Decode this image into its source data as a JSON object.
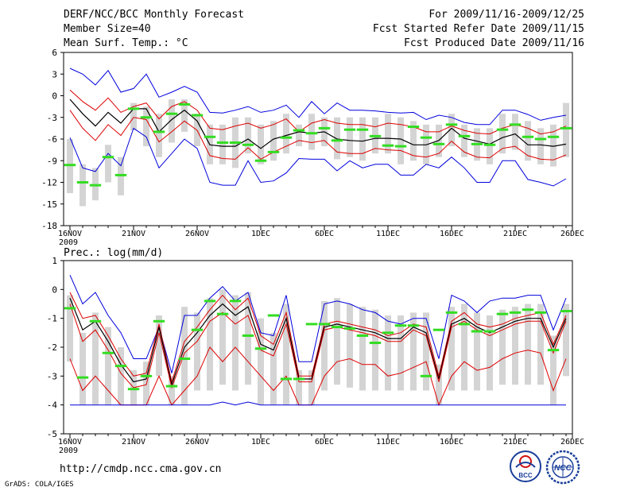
{
  "header": {
    "title": "DERF/NCC/BCC Monthly Forecast",
    "member_size": "Member Size=40",
    "variable": "Mean Surf. Temp.: °C",
    "period": "For 2009/11/16-2009/12/25",
    "started": "Fcst Started Refer Date 2009/11/15",
    "produced": "Fcst Produced Date 2009/11/16"
  },
  "footer": {
    "url": "http://cmdp.ncc.cma.gov.cn",
    "grads": "GrADS: COLA/IGES",
    "logo_bcc": "BCC",
    "logo_ncc": "NCC"
  },
  "colors": {
    "box": "#d4d4d4",
    "median": "#33dd22",
    "mean": "#000000",
    "std": "#dd0000",
    "extreme": "#0000dd"
  },
  "chart_data": [
    {
      "type": "line",
      "title": "Mean Surf. Temp.: °C",
      "xlabel": "",
      "ylabel": "",
      "x_days": 40,
      "x_tick_labels": [
        "16NOV",
        "21NOV",
        "26NOV",
        "1DEC",
        "6DEC",
        "11DEC",
        "16DEC",
        "21DEC",
        "26DEC"
      ],
      "x_year_label": "2009",
      "ylim": [
        -18,
        6
      ],
      "yticks": [
        -18,
        -15,
        -12,
        -9,
        -6,
        -3,
        0,
        3,
        6
      ],
      "series": [
        {
          "name": "max",
          "color": "#0000dd",
          "values": [
            3.8,
            3.0,
            1.5,
            3.5,
            0.5,
            1.0,
            3.0,
            -0.2,
            0.5,
            1.3,
            0.5,
            -2.3,
            -2.4,
            -2.0,
            -1.5,
            -2.3,
            -2.0,
            -1.3,
            -3.0,
            -0.8,
            -2.5,
            -1.0,
            -2.0,
            -2.0,
            -2.1,
            -2.3,
            -2.4,
            -2.3,
            -3.3,
            -2.7,
            -3.0,
            -3.7,
            -4.0,
            -4.0,
            -2.0,
            -2.0,
            -2.6,
            -3.4,
            -3.0,
            -2.7
          ]
        },
        {
          "name": "mean+1sd",
          "color": "#dd0000",
          "values": [
            0.8,
            -0.8,
            -2.0,
            -0.3,
            -2.3,
            -1.5,
            -1.0,
            -3.2,
            -1.5,
            -0.8,
            -2.0,
            -4.5,
            -4.7,
            -4.2,
            -3.8,
            -4.5,
            -4.0,
            -3.2,
            -5.0,
            -3.8,
            -3.3,
            -3.8,
            -4.0,
            -4.0,
            -4.3,
            -3.8,
            -4.0,
            -4.3,
            -5.0,
            -5.0,
            -4.2,
            -4.8,
            -5.2,
            -5.3,
            -4.5,
            -4.0,
            -4.5,
            -5.3,
            -5.0,
            -4.2
          ]
        },
        {
          "name": "mean",
          "color": "#000000",
          "values": [
            -0.5,
            -2.5,
            -4.2,
            -2.3,
            -3.8,
            -1.8,
            -1.8,
            -5.0,
            -3.3,
            -2.0,
            -3.5,
            -6.8,
            -7.0,
            -7.0,
            -6.0,
            -7.3,
            -6.0,
            -5.5,
            -5.0,
            -5.2,
            -5.0,
            -6.0,
            -6.2,
            -6.3,
            -5.9,
            -5.9,
            -6.0,
            -6.8,
            -6.8,
            -6.2,
            -4.5,
            -5.9,
            -6.3,
            -6.7,
            -5.8,
            -5.3,
            -6.8,
            -6.8,
            -7.0,
            -6.7
          ]
        },
        {
          "name": "mean-1sd",
          "color": "#dd0000",
          "values": [
            -2.0,
            -4.5,
            -6.2,
            -4.0,
            -5.5,
            -3.0,
            -3.3,
            -6.4,
            -5.0,
            -3.5,
            -4.8,
            -8.3,
            -8.7,
            -8.8,
            -7.2,
            -8.8,
            -7.8,
            -7.0,
            -6.2,
            -6.5,
            -6.2,
            -7.8,
            -8.0,
            -8.0,
            -7.3,
            -7.5,
            -7.6,
            -8.3,
            -8.5,
            -8.0,
            -6.3,
            -7.8,
            -8.5,
            -8.6,
            -7.3,
            -7.0,
            -8.3,
            -8.8,
            -8.9,
            -8.2
          ]
        },
        {
          "name": "min",
          "color": "#0000dd",
          "values": [
            -5.8,
            -10.0,
            -10.5,
            -8.0,
            -9.7,
            -4.5,
            -5.7,
            -10.0,
            -8.0,
            -6.0,
            -7.3,
            -12.0,
            -12.4,
            -12.4,
            -9.0,
            -12.0,
            -11.8,
            -10.7,
            -8.7,
            -8.8,
            -8.8,
            -10.4,
            -9.0,
            -10.0,
            -9.5,
            -9.5,
            -11.0,
            -11.0,
            -9.5,
            -10.0,
            -8.5,
            -10.0,
            -12.0,
            -12.0,
            -9.0,
            -9.0,
            -11.6,
            -12.0,
            -12.5,
            -11.5
          ]
        }
      ],
      "boxes_low": [
        -13.5,
        -15.3,
        -14.5,
        -12.0,
        -13.8,
        -4.8,
        -7.0,
        -8.5,
        -6.5,
        -5.0,
        -7.0,
        -9.5,
        -9.5,
        -10.0,
        -8.0,
        -9.5,
        -9.0,
        -8.0,
        -7.0,
        -7.5,
        -7.0,
        -8.8,
        -8.5,
        -9.0,
        -8.0,
        -8.0,
        -9.5,
        -9.0,
        -9.5,
        -8.5,
        -7.0,
        -8.5,
        -9.0,
        -9.5,
        -8.0,
        -7.5,
        -9.0,
        -9.5,
        -9.8,
        -8.5
      ],
      "boxes_high": [
        -6.0,
        -9.5,
        -10.0,
        -6.8,
        -8.5,
        -1.0,
        -1.5,
        -2.5,
        -0.5,
        -0.5,
        -2.5,
        -4.0,
        -4.0,
        -3.0,
        -3.0,
        -4.0,
        -3.5,
        -2.5,
        -4.0,
        -2.5,
        -3.0,
        -3.0,
        -3.0,
        -3.0,
        -3.0,
        -2.5,
        -3.0,
        -3.5,
        -4.0,
        -4.0,
        -2.5,
        -4.0,
        -4.5,
        -4.5,
        -2.5,
        -2.5,
        -3.5,
        -4.5,
        -4.0,
        -1.0
      ],
      "medians": [
        -9.6,
        -12.0,
        -12.4,
        -8.5,
        -11.0,
        -1.8,
        -3.0,
        -5.0,
        -2.5,
        -1.2,
        -2.7,
        -5.7,
        -6.5,
        -6.5,
        -6.8,
        -9.0,
        -7.8,
        -5.8,
        -4.8,
        -5.2,
        -4.5,
        -6.2,
        -4.7,
        -4.7,
        -5.6,
        -6.9,
        -7.0,
        -4.3,
        -5.8,
        -6.7,
        -4.0,
        -5.6,
        -6.7,
        -6.8,
        -4.7,
        -4.0,
        -5.7,
        -6.0,
        -5.7,
        -4.5
      ]
    },
    {
      "type": "line",
      "title": "Prec.: log(mm/d)",
      "xlabel": "",
      "ylabel": "",
      "x_days": 40,
      "x_tick_labels": [
        "16NOV",
        "21NOV",
        "26NOV",
        "1DEC",
        "6DEC",
        "11DEC",
        "16DEC",
        "21DEC",
        "26DEC"
      ],
      "x_year_label": "2009",
      "ylim": [
        -5,
        1
      ],
      "yticks": [
        -5,
        -4,
        -3,
        -2,
        -1,
        0,
        1
      ],
      "series": [
        {
          "name": "max",
          "color": "#0000dd",
          "values": [
            0.5,
            -0.5,
            -0.1,
            -0.9,
            -1.5,
            -2.4,
            -2.4,
            -1.3,
            -2.9,
            -0.9,
            -0.9,
            -0.3,
            0.1,
            -0.4,
            -0.1,
            -1.5,
            -1.6,
            -0.2,
            -2.5,
            -2.5,
            -0.5,
            -0.4,
            -0.5,
            -0.7,
            -0.8,
            -1.1,
            -1.2,
            -1.0,
            -1.0,
            -2.4,
            -0.2,
            -0.4,
            -0.8,
            -0.4,
            -0.3,
            -0.3,
            -0.2,
            -0.2,
            -1.4,
            -0.3
          ]
        },
        {
          "name": "mean+1sd",
          "color": "#dd0000",
          "values": [
            -0.1,
            -1.0,
            -0.9,
            -1.6,
            -2.4,
            -3.0,
            -2.9,
            -1.2,
            -3.2,
            -1.8,
            -1.3,
            -0.7,
            -0.2,
            -0.7,
            -0.3,
            -1.6,
            -1.9,
            -0.8,
            -3.0,
            -3.0,
            -1.2,
            -1.1,
            -1.2,
            -1.3,
            -1.4,
            -1.6,
            -1.5,
            -1.2,
            -1.3,
            -3.0,
            -1.1,
            -0.8,
            -1.2,
            -1.3,
            -1.2,
            -1.0,
            -0.9,
            -0.8,
            -1.9,
            -0.9
          ]
        },
        {
          "name": "mean",
          "color": "#000000",
          "values": [
            -0.3,
            -1.4,
            -1.1,
            -1.8,
            -2.6,
            -3.2,
            -3.1,
            -1.3,
            -3.3,
            -2.0,
            -1.5,
            -0.9,
            -0.5,
            -0.9,
            -0.6,
            -1.9,
            -2.1,
            -1.0,
            -3.1,
            -3.1,
            -1.3,
            -1.2,
            -1.3,
            -1.4,
            -1.5,
            -1.7,
            -1.7,
            -1.3,
            -1.5,
            -3.1,
            -1.2,
            -1.0,
            -1.3,
            -1.5,
            -1.3,
            -1.1,
            -1.0,
            -1.0,
            -2.0,
            -1.0
          ]
        },
        {
          "name": "mean-1sd",
          "color": "#dd0000",
          "values": [
            -0.5,
            -1.8,
            -1.4,
            -2.1,
            -2.9,
            -3.4,
            -3.3,
            -1.5,
            -3.4,
            -2.2,
            -1.8,
            -1.1,
            -0.8,
            -1.2,
            -0.9,
            -2.1,
            -2.3,
            -1.2,
            -3.2,
            -3.2,
            -1.4,
            -1.3,
            -1.4,
            -1.5,
            -1.6,
            -1.8,
            -1.8,
            -1.4,
            -1.6,
            -3.2,
            -1.3,
            -1.1,
            -1.4,
            -1.6,
            -1.4,
            -1.2,
            -1.1,
            -1.1,
            -2.2,
            -1.1
          ]
        },
        {
          "name": "low",
          "color": "#dd0000",
          "values": [
            -2.4,
            -3.5,
            -3.0,
            -3.5,
            -4.0,
            -4.0,
            -4.0,
            -3.0,
            -4.0,
            -3.5,
            -3.0,
            -2.0,
            -2.5,
            -2.0,
            -2.5,
            -3.0,
            -3.5,
            -3.0,
            -4.0,
            -4.0,
            -3.0,
            -2.5,
            -2.4,
            -2.6,
            -2.6,
            -3.0,
            -2.9,
            -2.7,
            -2.5,
            -4.0,
            -3.0,
            -2.5,
            -2.8,
            -2.7,
            -2.4,
            -2.2,
            -2.1,
            -2.2,
            -3.5,
            -2.4
          ]
        },
        {
          "name": "min",
          "color": "#0000dd",
          "values": [
            -4.0,
            -4.0,
            -4.0,
            -4.0,
            -4.0,
            -4.0,
            -4.0,
            -4.0,
            -4.0,
            -4.0,
            -4.0,
            -4.0,
            -3.9,
            -4.0,
            -3.9,
            -4.0,
            -4.0,
            -4.0,
            -4.0,
            -4.0,
            -4.0,
            -4.0,
            -4.0,
            -4.0,
            -4.0,
            -4.0,
            -4.0,
            -4.0,
            -4.0,
            -4.0,
            -4.0,
            -4.0,
            -4.0,
            -4.0,
            -4.0,
            -4.0,
            -4.0,
            -4.0,
            -4.0,
            -4.0
          ]
        }
      ],
      "boxes_low": [
        -2.5,
        -4.0,
        -4.0,
        -4.0,
        -4.0,
        -4.0,
        -4.0,
        -3.0,
        -4.0,
        -4.0,
        -3.5,
        -3.5,
        -3.3,
        -3.5,
        -3.3,
        -4.0,
        -4.0,
        -4.0,
        -4.0,
        -4.0,
        -3.5,
        -3.3,
        -3.4,
        -3.5,
        -3.5,
        -3.5,
        -3.5,
        -3.5,
        -3.5,
        -4.0,
        -3.5,
        -3.5,
        -3.5,
        -3.5,
        -3.3,
        -3.3,
        -3.3,
        -3.3,
        -4.0,
        -3.0
      ],
      "boxes_high": [
        -0.2,
        -1.5,
        -0.8,
        -1.3,
        -2.0,
        -2.8,
        -2.5,
        -0.9,
        -3.0,
        -0.6,
        -0.8,
        -0.3,
        0.0,
        -0.2,
        -0.1,
        -1.0,
        -1.5,
        -0.5,
        -2.8,
        -2.8,
        -0.4,
        -0.3,
        -0.5,
        -0.6,
        -0.7,
        -0.9,
        -0.9,
        -0.8,
        -0.8,
        -2.6,
        -0.6,
        -0.5,
        -0.8,
        -0.9,
        -0.7,
        -0.6,
        -0.5,
        -0.5,
        -1.6,
        -0.5
      ],
      "medians": [
        -0.65,
        -3.05,
        -1.1,
        -2.2,
        -2.65,
        -3.45,
        -3.0,
        -1.1,
        -3.35,
        -2.4,
        -1.4,
        -0.4,
        -0.85,
        -0.4,
        -1.6,
        -2.05,
        -0.9,
        -3.1,
        -3.1,
        -1.2,
        -1.2,
        -1.3,
        -1.35,
        -1.6,
        -1.85,
        -1.5,
        -1.25,
        -1.25,
        -3.0,
        -1.4,
        -0.8,
        -1.2,
        -1.45,
        -1.45,
        -0.85,
        -0.8,
        -0.7,
        -0.8,
        -2.1,
        -0.75
      ]
    }
  ]
}
